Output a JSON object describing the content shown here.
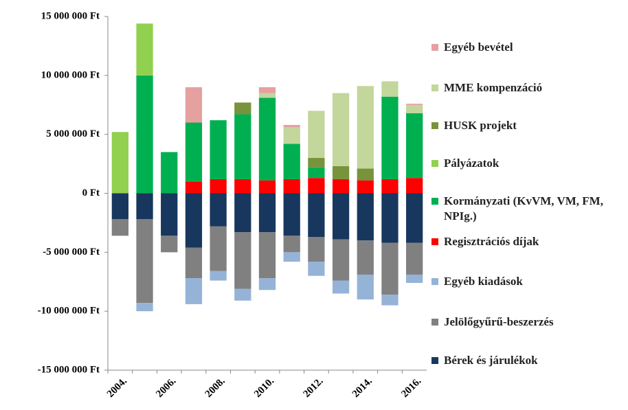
{
  "chart_data": {
    "type": "bar",
    "stacked": true,
    "categories": [
      "2004.",
      null,
      "2006.",
      null,
      "2008.",
      null,
      "2010.",
      null,
      "2012.",
      null,
      "2014.",
      null,
      "2016."
    ],
    "ylim": [
      -15000000,
      15000000
    ],
    "yticks": [
      {
        "value": -15000000,
        "label": "-15 000 000 Ft"
      },
      {
        "value": -10000000,
        "label": "-10 000 000 Ft"
      },
      {
        "value": -5000000,
        "label": "-5 000 000 Ft"
      },
      {
        "value": 0,
        "label": "0 Ft"
      },
      {
        "value": 5000000,
        "label": "5 000 000 Ft"
      },
      {
        "value": 10000000,
        "label": "10 000 000 Ft"
      },
      {
        "value": 15000000,
        "label": "15 000 000 Ft"
      }
    ],
    "series": [
      {
        "name": "Regisztrációs díjak",
        "color": "#ff0000",
        "values": [
          0,
          0,
          0,
          1000000,
          1200000,
          1200000,
          1100000,
          1200000,
          1300000,
          1200000,
          1100000,
          1200000,
          1300000
        ]
      },
      {
        "name": "Kormányzati (KvVM, VM, FM, NPIg.)",
        "color": "#00b050",
        "values": [
          0,
          10000000,
          3500000,
          5000000,
          5000000,
          5500000,
          7000000,
          3000000,
          900000,
          0,
          0,
          7000000,
          5500000
        ]
      },
      {
        "name": "Pályázatok",
        "color": "#92d050",
        "values": [
          5200000,
          4400000,
          0,
          0,
          0,
          0,
          0,
          0,
          0,
          0,
          0,
          0,
          0
        ]
      },
      {
        "name": "HUSK projekt",
        "color": "#77933c",
        "values": [
          0,
          0,
          0,
          0,
          0,
          1000000,
          0,
          0,
          800000,
          1100000,
          1000000,
          0,
          0
        ]
      },
      {
        "name": "MME kompenzáció",
        "color": "#c3d69b",
        "values": [
          0,
          0,
          0,
          0,
          0,
          0,
          400000,
          1400000,
          4000000,
          6200000,
          7000000,
          1300000,
          700000
        ]
      },
      {
        "name": "Egyéb bevétel",
        "color": "#e6a0a0",
        "values": [
          0,
          0,
          0,
          3000000,
          0,
          0,
          500000,
          200000,
          0,
          0,
          0,
          0,
          100000
        ]
      },
      {
        "name": "Bérek és járulékok",
        "color": "#17375e",
        "values": [
          -2200000,
          -2200000,
          -3600000,
          -4600000,
          -2800000,
          -3300000,
          -3300000,
          -3600000,
          -3700000,
          -3900000,
          -4000000,
          -4200000,
          -4200000
        ]
      },
      {
        "name": "Jelölőgyűrű-beszerzés",
        "color": "#808080",
        "values": [
          -1400000,
          -7100000,
          -1400000,
          -2600000,
          -3800000,
          -4800000,
          -3900000,
          -1400000,
          -2100000,
          -3500000,
          -2900000,
          -4400000,
          -2700000
        ]
      },
      {
        "name": "Egyéb kiadások",
        "color": "#95b3d7",
        "values": [
          0,
          -700000,
          0,
          -2200000,
          -800000,
          -1000000,
          -1000000,
          -800000,
          -1200000,
          -1100000,
          -2100000,
          -900000,
          -700000
        ]
      }
    ],
    "legend_order": [
      5,
      4,
      3,
      2,
      1,
      0,
      8,
      7,
      6
    ]
  }
}
